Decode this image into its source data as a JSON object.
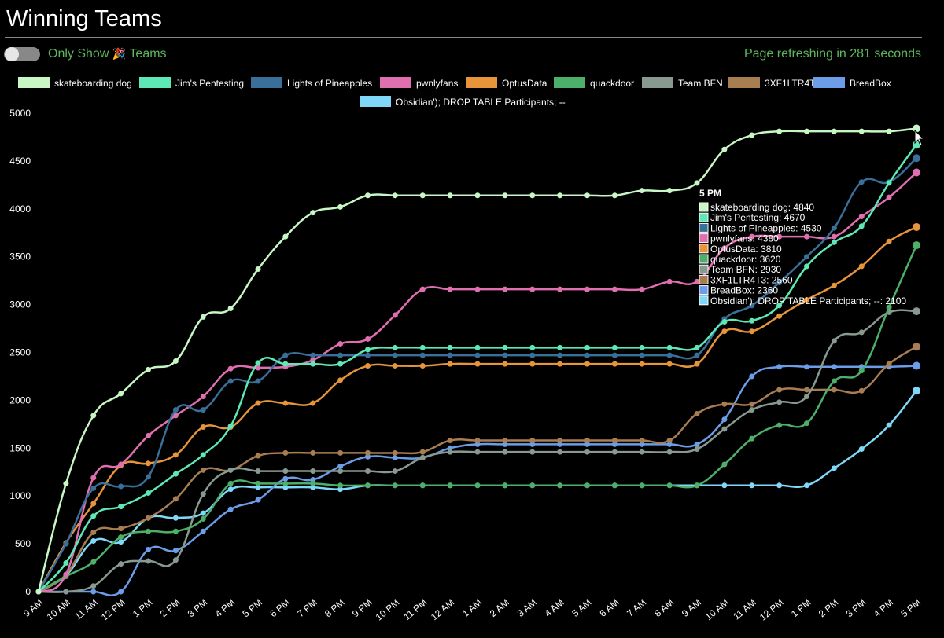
{
  "header": {
    "title": "Winning Teams",
    "toggle_label_before": "Only Show",
    "toggle_icon": "party-popper-icon",
    "toggle_icon_glyph": "🎉",
    "toggle_label_after": "Teams",
    "refresh_text": "Page refreshing in 281 seconds"
  },
  "chart_data": {
    "type": "line",
    "title": "Winning Teams",
    "xlabel": "",
    "ylabel": "",
    "ylim": [
      0,
      5000
    ],
    "yticks": [
      0,
      500,
      1000,
      1500,
      2000,
      2500,
      3000,
      3500,
      4000,
      4500,
      5000
    ],
    "grid": false,
    "legend_position": "top",
    "categories": [
      "9 AM",
      "10 AM",
      "11 AM",
      "12 PM",
      "1 PM",
      "2 PM",
      "3 PM",
      "4 PM",
      "5 PM",
      "6 PM",
      "7 PM",
      "8 PM",
      "9 PM",
      "10 PM",
      "11 PM",
      "12 AM",
      "1 AM",
      "2 AM",
      "3 AM",
      "4 AM",
      "5 AM",
      "6 AM",
      "7 AM",
      "8 AM",
      "9 AM",
      "10 AM",
      "11 AM",
      "12 PM",
      "1 PM",
      "2 PM",
      "3 PM",
      "4 PM",
      "5 PM"
    ],
    "series": [
      {
        "name": "skateboarding dog",
        "color": "#c8f7c5",
        "values": [
          0,
          1130,
          1840,
          2070,
          2320,
          2410,
          2870,
          2960,
          3370,
          3710,
          3960,
          4020,
          4140,
          4140,
          4140,
          4140,
          4140,
          4140,
          4140,
          4140,
          4140,
          4140,
          4190,
          4190,
          4270,
          4620,
          4770,
          4810,
          4810,
          4810,
          4810,
          4810,
          4840
        ]
      },
      {
        "name": "Jim's Pentesting",
        "color": "#5ee8b5",
        "values": [
          0,
          300,
          790,
          890,
          1030,
          1230,
          1430,
          1730,
          2390,
          2380,
          2380,
          2380,
          2530,
          2550,
          2550,
          2550,
          2550,
          2550,
          2550,
          2550,
          2550,
          2550,
          2550,
          2550,
          2550,
          2820,
          2830,
          2990,
          3400,
          3650,
          3820,
          4270,
          4670
        ]
      },
      {
        "name": "Lights of Pineapples",
        "color": "#3a6f9a",
        "values": [
          0,
          500,
          1080,
          1100,
          1200,
          1900,
          1900,
          2200,
          2200,
          2470,
          2470,
          2470,
          2470,
          2470,
          2470,
          2470,
          2470,
          2470,
          2470,
          2470,
          2470,
          2470,
          2470,
          2470,
          2470,
          2850,
          2990,
          3230,
          3500,
          3800,
          4280,
          4280,
          4530
        ]
      },
      {
        "name": "pwnlyfans",
        "color": "#e06fb0",
        "values": [
          0,
          180,
          1190,
          1330,
          1630,
          1840,
          2040,
          2330,
          2340,
          2350,
          2420,
          2590,
          2640,
          2890,
          3160,
          3160,
          3160,
          3160,
          3160,
          3160,
          3160,
          3160,
          3160,
          3240,
          3240,
          3590,
          3710,
          3710,
          3710,
          3710,
          3920,
          4120,
          4380
        ]
      },
      {
        "name": "OptusData",
        "color": "#e8943a",
        "values": [
          0,
          510,
          920,
          1320,
          1340,
          1430,
          1720,
          1720,
          1970,
          1970,
          1970,
          2210,
          2360,
          2360,
          2360,
          2380,
          2380,
          2380,
          2380,
          2380,
          2380,
          2380,
          2380,
          2380,
          2380,
          2720,
          2720,
          2880,
          3050,
          3200,
          3400,
          3660,
          3810
        ]
      },
      {
        "name": "quackdoor",
        "color": "#4caf6a",
        "values": [
          0,
          160,
          310,
          570,
          630,
          630,
          760,
          1130,
          1130,
          1130,
          1130,
          1110,
          1110,
          1110,
          1110,
          1110,
          1110,
          1110,
          1110,
          1110,
          1110,
          1110,
          1110,
          1110,
          1110,
          1330,
          1600,
          1740,
          1760,
          2200,
          2310,
          2970,
          3620
        ]
      },
      {
        "name": "Team BFN",
        "color": "#889a8f",
        "values": [
          0,
          0,
          60,
          290,
          320,
          330,
          1020,
          1270,
          1260,
          1260,
          1260,
          1260,
          1260,
          1260,
          1400,
          1460,
          1460,
          1460,
          1460,
          1460,
          1460,
          1460,
          1460,
          1460,
          1490,
          1700,
          1900,
          1980,
          2040,
          2620,
          2710,
          2920,
          2930
        ]
      },
      {
        "name": "3XF1LTR4T3",
        "color": "#a87d52",
        "values": [
          0,
          180,
          620,
          660,
          770,
          970,
          1270,
          1270,
          1420,
          1450,
          1450,
          1450,
          1450,
          1450,
          1460,
          1580,
          1580,
          1580,
          1580,
          1580,
          1580,
          1580,
          1580,
          1580,
          1860,
          1960,
          1960,
          2110,
          2110,
          2110,
          2100,
          2380,
          2560
        ]
      },
      {
        "name": "BreadBox",
        "color": "#6b9de8",
        "values": [
          0,
          0,
          0,
          0,
          440,
          430,
          630,
          860,
          960,
          1180,
          1170,
          1310,
          1410,
          1400,
          1400,
          1500,
          1540,
          1540,
          1540,
          1540,
          1540,
          1540,
          1540,
          1540,
          1540,
          1800,
          2250,
          2350,
          2350,
          2350,
          2350,
          2350,
          2360
        ]
      },
      {
        "name": "Obsidian'); DROP TABLE Participants; --",
        "color": "#7fd8f8",
        "values": [
          0,
          170,
          530,
          520,
          770,
          770,
          820,
          1070,
          1090,
          1090,
          1090,
          1070,
          1110,
          1110,
          1110,
          1110,
          1110,
          1110,
          1110,
          1110,
          1110,
          1110,
          1110,
          1110,
          1110,
          1110,
          1110,
          1110,
          1110,
          1290,
          1490,
          1740,
          2100
        ]
      }
    ],
    "tooltip": {
      "title": "5 PM",
      "items": [
        "skateboarding dog: 4840",
        "Jim's Pentesting: 4670",
        "Lights of Pineapples: 4530",
        "pwnlyfans: 4380",
        "OptusData: 3810",
        "quackdoor: 3620",
        "Team BFN: 2930",
        "3XF1LTR4T3: 2560",
        "BreadBox: 2360",
        "Obsidian'); DROP TABLE Participants; --: 2100"
      ]
    }
  }
}
